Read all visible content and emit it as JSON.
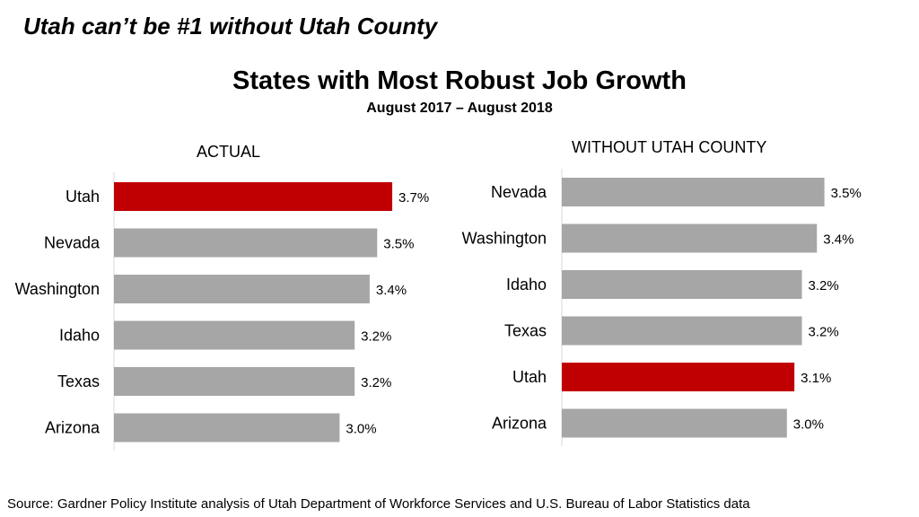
{
  "headline": "Utah can’t be #1 without Utah County",
  "title": "States with Most Robust Job Growth",
  "subtitle": "August 2017 – August 2018",
  "source": "Source:  Gardner Policy Institute analysis of Utah Department of Workforce Services and U.S. Bureau of Labor Statistics data",
  "colors": {
    "highlight": "#C00000",
    "default": "#A6A6A6",
    "axis": "#D9D9D9"
  },
  "chart_data": [
    {
      "type": "bar",
      "orientation": "horizontal",
      "panel_label": "ACTUAL",
      "categories": [
        "Utah",
        "Nevada",
        "Washington",
        "Idaho",
        "Texas",
        "Arizona"
      ],
      "values": [
        3.7,
        3.5,
        3.4,
        3.2,
        3.2,
        3.0
      ],
      "labels": [
        "3.7%",
        "3.5%",
        "3.4%",
        "3.2%",
        "3.2%",
        "3.0%"
      ],
      "highlight": "Utah",
      "unit": "%"
    },
    {
      "type": "bar",
      "orientation": "horizontal",
      "panel_label": "WITHOUT UTAH COUNTY",
      "categories": [
        "Nevada",
        "Washington",
        "Idaho",
        "Texas",
        "Utah",
        "Arizona"
      ],
      "values": [
        3.5,
        3.4,
        3.2,
        3.2,
        3.1,
        3.0
      ],
      "labels": [
        "3.5%",
        "3.4%",
        "3.2%",
        "3.2%",
        "3.1%",
        "3.0%"
      ],
      "highlight": "Utah",
      "unit": "%"
    }
  ]
}
